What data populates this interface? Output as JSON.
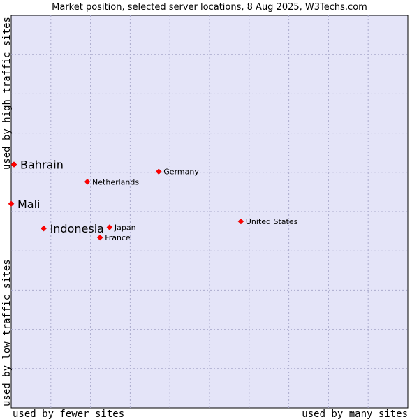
{
  "chart_data": {
    "type": "scatter",
    "title": "Market position, selected server locations, 8 Aug 2025, W3Techs.com",
    "xlabel_left": "used by fewer sites",
    "xlabel_right": "used by many sites",
    "ylabel_bottom": "used by low traffic sites",
    "ylabel_top": "used by high traffic sites",
    "xlim": [
      0,
      10
    ],
    "ylim": [
      0,
      10
    ],
    "grid": true,
    "colors": {
      "plot_background": "#e4e4f8",
      "grid": "#aaaacc",
      "point": "#ff0000",
      "border": "#000000"
    },
    "points": [
      {
        "label": "Bahrain",
        "x": 0.07,
        "y": 6.2,
        "emphasis": true
      },
      {
        "label": "Mali",
        "x": 0.0,
        "y": 5.2,
        "emphasis": true
      },
      {
        "label": "Indonesia",
        "x": 0.82,
        "y": 4.57,
        "emphasis": true
      },
      {
        "label": "Netherlands",
        "x": 1.92,
        "y": 5.76,
        "emphasis": false
      },
      {
        "label": "Germany",
        "x": 3.72,
        "y": 6.02,
        "emphasis": false
      },
      {
        "label": "United States",
        "x": 5.79,
        "y": 4.75,
        "emphasis": false
      },
      {
        "label": "Japan",
        "x": 2.48,
        "y": 4.6,
        "emphasis": false
      },
      {
        "label": "France",
        "x": 2.24,
        "y": 4.34,
        "emphasis": false
      }
    ]
  }
}
